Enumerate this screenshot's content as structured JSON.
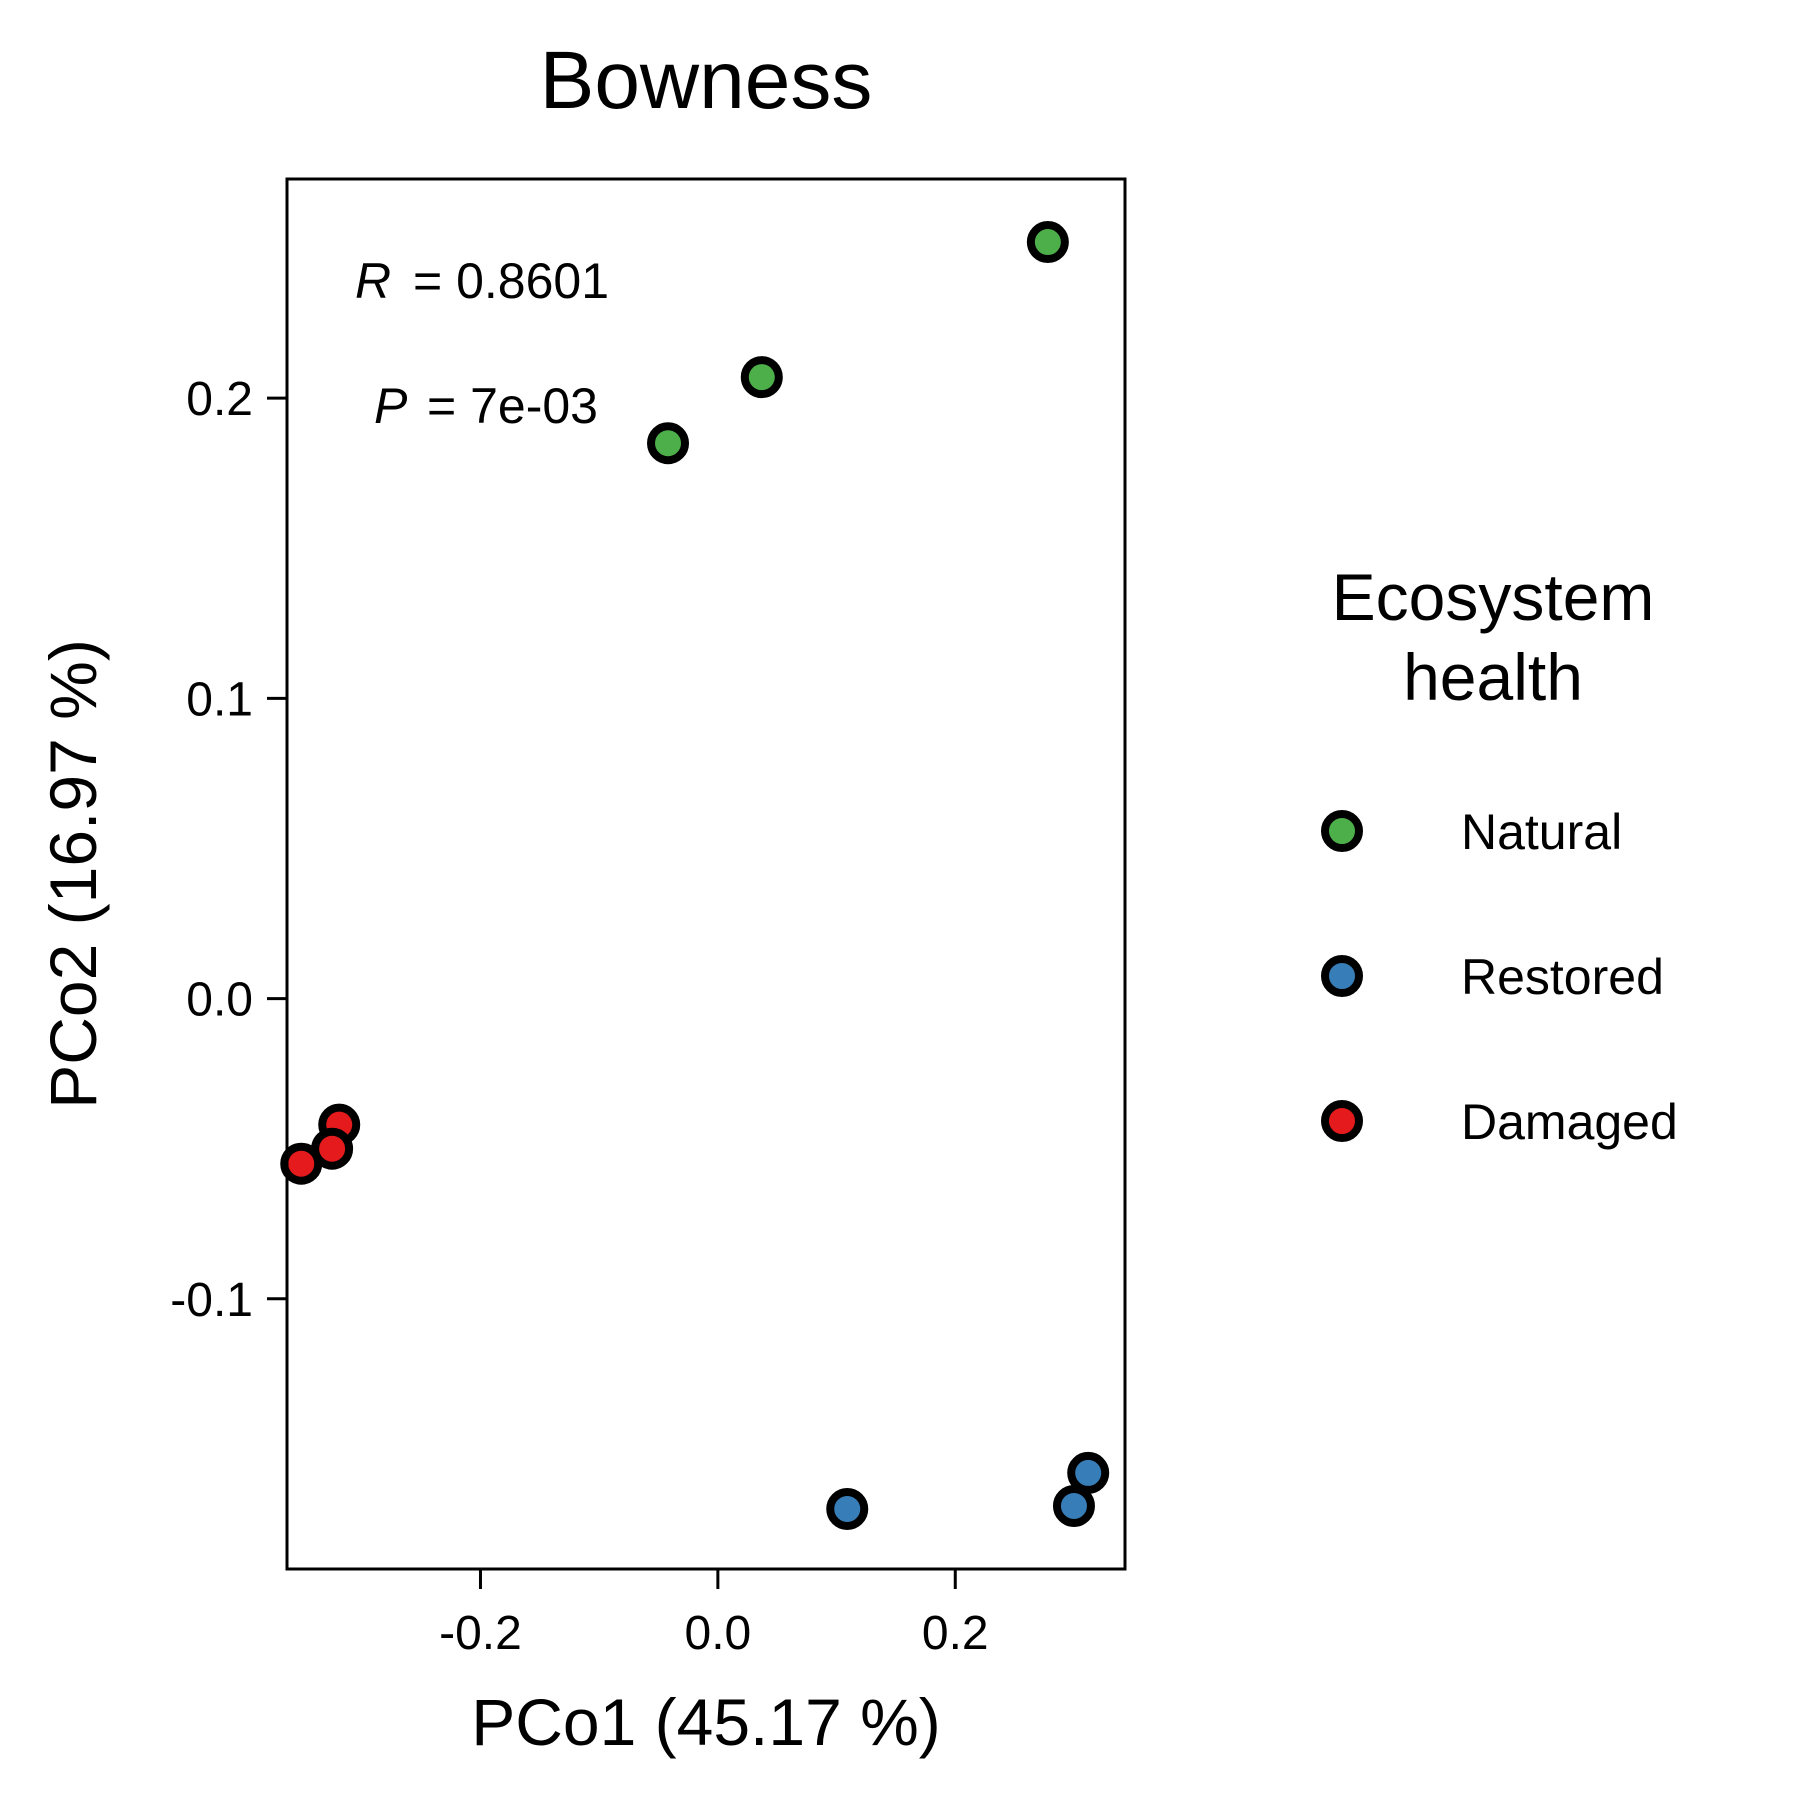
{
  "chart_data": {
    "type": "scatter",
    "title": "Bowness",
    "xlabel": "PCo1 (45.17 %)",
    "ylabel": "PCo2 (16.97 %)",
    "xlim": [
      -0.363,
      0.343
    ],
    "ylim": [
      -0.19,
      0.273
    ],
    "xticks": [
      -0.2,
      0.0,
      0.2
    ],
    "xtick_labels": [
      "-0.2",
      "0.0",
      "0.2"
    ],
    "yticks": [
      -0.1,
      0.0,
      0.1,
      0.2
    ],
    "ytick_labels": [
      "-0.1",
      "0.0",
      "0.1",
      "0.2"
    ],
    "grid": false,
    "annotations": {
      "r_symbol": "R",
      "r_value": "= 0.8601",
      "p_symbol": "P",
      "p_value": "= 7e-03"
    },
    "legend": {
      "title_line1": "Ecosystem",
      "title_line2": "health",
      "placement": "right"
    },
    "series": [
      {
        "name": "Natural",
        "color": "#4daf4a",
        "points": [
          [
            0.278,
            0.252
          ],
          [
            0.037,
            0.207
          ],
          [
            -0.042,
            0.185
          ]
        ]
      },
      {
        "name": "Restored",
        "color": "#377eb8",
        "points": [
          [
            0.312,
            -0.158
          ],
          [
            0.3,
            -0.169
          ],
          [
            0.109,
            -0.17
          ]
        ]
      },
      {
        "name": "Damaged",
        "color": "#e41a1c",
        "points": [
          [
            -0.319,
            -0.042
          ],
          [
            -0.325,
            -0.05
          ],
          [
            -0.351,
            -0.055
          ]
        ]
      }
    ]
  }
}
